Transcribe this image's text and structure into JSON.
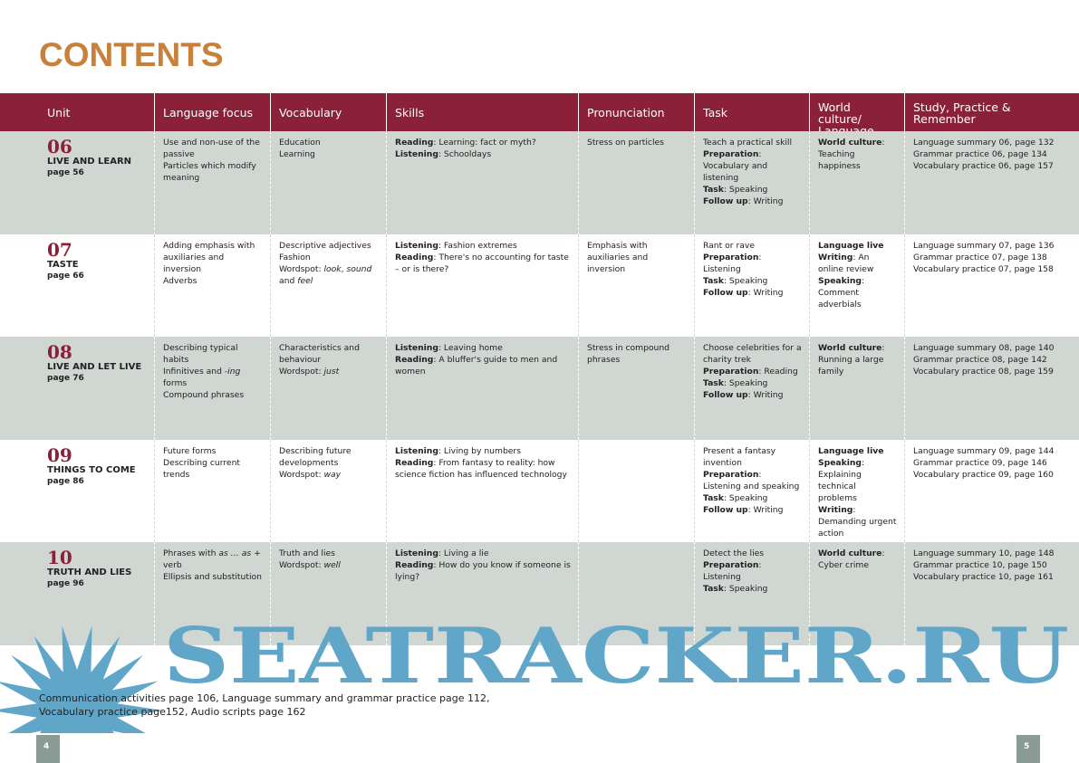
{
  "title": "CONTENTS",
  "headers": [
    "Unit",
    "Language focus",
    "Vocabulary",
    "Skills",
    "Pronunciation",
    "Task",
    "World culture/ Language live",
    "Study, Practice & Remember"
  ],
  "rows": [
    {
      "num": "06",
      "name": "LIVE AND LEARN",
      "page": "page 56",
      "cols": [
        [
          [
            {
              "s": "Use and non-use of the passive"
            }
          ],
          [
            {
              "s": "Particles which modify meaning"
            }
          ]
        ],
        [
          [
            {
              "s": "Education"
            }
          ],
          [
            {
              "s": "Learning"
            }
          ]
        ],
        [
          [
            {
              "s": "Reading",
              "f": "b"
            },
            {
              "s": ": Learning: fact or myth?"
            }
          ],
          [
            {
              "s": "Listening",
              "f": "b"
            },
            {
              "s": ": Schooldays"
            }
          ]
        ],
        [
          [
            {
              "s": "Stress on particles"
            }
          ]
        ],
        [
          [
            {
              "s": "Teach a practical skill"
            }
          ],
          [
            {
              "s": "Preparation",
              "f": "b"
            },
            {
              "s": ": Vocabulary and listening"
            }
          ],
          [
            {
              "s": "Task",
              "f": "b"
            },
            {
              "s": ": Speaking"
            }
          ],
          [
            {
              "s": "Follow up",
              "f": "b"
            },
            {
              "s": ": Writing"
            }
          ]
        ],
        [
          [
            {
              "s": "World culture",
              "f": "b"
            },
            {
              "s": ": Teaching happiness"
            }
          ]
        ],
        [
          [
            {
              "s": "Language summary 06, page 132"
            }
          ],
          [
            {
              "s": "Grammar practice 06, page 134"
            }
          ],
          [
            {
              "s": "Vocabulary practice 06, page 157"
            }
          ]
        ]
      ]
    },
    {
      "num": "07",
      "name": "TASTE",
      "page": "page 66",
      "cols": [
        [
          [
            {
              "s": "Adding emphasis with auxiliaries and inversion"
            }
          ],
          [
            {
              "s": "Adverbs"
            }
          ]
        ],
        [
          [
            {
              "s": "Descriptive adjectives"
            }
          ],
          [
            {
              "s": "Fashion"
            }
          ],
          [
            {
              "s": "Wordspot: "
            },
            {
              "s": "look",
              "f": "i"
            },
            {
              "s": ", "
            },
            {
              "s": "sound",
              "f": "i"
            },
            {
              "s": " and "
            },
            {
              "s": "feel",
              "f": "i"
            }
          ]
        ],
        [
          [
            {
              "s": "Listening",
              "f": "b"
            },
            {
              "s": ": Fashion extremes"
            }
          ],
          [
            {
              "s": "Reading",
              "f": "b"
            },
            {
              "s": ": There's no accounting for taste – or is there?"
            }
          ]
        ],
        [
          [
            {
              "s": "Emphasis with auxiliaries and inversion"
            }
          ]
        ],
        [
          [
            {
              "s": "Rant or rave"
            }
          ],
          [
            {
              "s": "Preparation",
              "f": "b"
            },
            {
              "s": ": Listening"
            }
          ],
          [
            {
              "s": "Task",
              "f": "b"
            },
            {
              "s": ": Speaking"
            }
          ],
          [
            {
              "s": "Follow up",
              "f": "b"
            },
            {
              "s": ": Writing"
            }
          ]
        ],
        [
          [
            {
              "s": "Language live",
              "f": "b"
            }
          ],
          [
            {
              "s": "Writing",
              "f": "b"
            },
            {
              "s": ": An online review"
            }
          ],
          [
            {
              "s": "Speaking",
              "f": "b"
            },
            {
              "s": ": Comment adverbials"
            }
          ]
        ],
        [
          [
            {
              "s": "Language summary 07, page 136"
            }
          ],
          [
            {
              "s": "Grammar practice 07, page 138"
            }
          ],
          [
            {
              "s": "Vocabulary practice 07, page 158"
            }
          ]
        ]
      ]
    },
    {
      "num": "08",
      "name": "LIVE AND LET LIVE",
      "page": "page 76",
      "cols": [
        [
          [
            {
              "s": "Describing typical habits"
            }
          ],
          [
            {
              "s": "Infinitives and "
            },
            {
              "s": "-ing",
              "f": "i"
            },
            {
              "s": " forms"
            }
          ],
          [
            {
              "s": "Compound phrases"
            }
          ]
        ],
        [
          [
            {
              "s": "Characteristics and behaviour"
            }
          ],
          [
            {
              "s": "Wordspot: "
            },
            {
              "s": "just",
              "f": "i"
            }
          ]
        ],
        [
          [
            {
              "s": "Listening",
              "f": "b"
            },
            {
              "s": ": Leaving home"
            }
          ],
          [
            {
              "s": "Reading",
              "f": "b"
            },
            {
              "s": ": A bluffer's guide to men and women"
            }
          ]
        ],
        [
          [
            {
              "s": "Stress in compound phrases"
            }
          ]
        ],
        [
          [
            {
              "s": "Choose celebrities for a charity trek"
            }
          ],
          [
            {
              "s": "Preparation",
              "f": "b"
            },
            {
              "s": ": Reading"
            }
          ],
          [
            {
              "s": "Task",
              "f": "b"
            },
            {
              "s": ": Speaking"
            }
          ],
          [
            {
              "s": "Follow up",
              "f": "b"
            },
            {
              "s": ": Writing"
            }
          ]
        ],
        [
          [
            {
              "s": "World culture",
              "f": "b"
            },
            {
              "s": ": Running a large family"
            }
          ]
        ],
        [
          [
            {
              "s": "Language summary 08, page 140"
            }
          ],
          [
            {
              "s": "Grammar practice 08, page 142"
            }
          ],
          [
            {
              "s": "Vocabulary practice 08, page 159"
            }
          ]
        ]
      ]
    },
    {
      "num": "09",
      "name": "THINGS TO COME",
      "page": "page 86",
      "cols": [
        [
          [
            {
              "s": "Future forms"
            }
          ],
          [
            {
              "s": "Describing current trends"
            }
          ]
        ],
        [
          [
            {
              "s": "Describing future developments"
            }
          ],
          [
            {
              "s": "Wordspot: "
            },
            {
              "s": "way",
              "f": "i"
            }
          ]
        ],
        [
          [
            {
              "s": "Listening",
              "f": "b"
            },
            {
              "s": ": Living by numbers"
            }
          ],
          [
            {
              "s": "Reading",
              "f": "b"
            },
            {
              "s": ": From fantasy to reality: how science fiction has influenced technology"
            }
          ]
        ],
        [],
        [
          [
            {
              "s": "Present a fantasy invention"
            }
          ],
          [
            {
              "s": "Preparation",
              "f": "b"
            },
            {
              "s": ": Listening and speaking"
            }
          ],
          [
            {
              "s": "Task",
              "f": "b"
            },
            {
              "s": ": Speaking"
            }
          ],
          [
            {
              "s": "Follow up",
              "f": "b"
            },
            {
              "s": ": Writing"
            }
          ]
        ],
        [
          [
            {
              "s": "Language live",
              "f": "b"
            }
          ],
          [
            {
              "s": "Speaking",
              "f": "b"
            },
            {
              "s": ": Explaining technical problems"
            }
          ],
          [
            {
              "s": "Writing",
              "f": "b"
            },
            {
              "s": ": Demanding urgent action"
            }
          ]
        ],
        [
          [
            {
              "s": "Language summary 09, page 144"
            }
          ],
          [
            {
              "s": "Grammar practice 09, page 146"
            }
          ],
          [
            {
              "s": "Vocabulary practice 09, page 160"
            }
          ]
        ]
      ]
    },
    {
      "num": "10",
      "name": "TRUTH AND LIES",
      "page": "page 96",
      "cols": [
        [
          [
            {
              "s": "Phrases with "
            },
            {
              "s": "as … as",
              "f": "i"
            },
            {
              "s": " + verb"
            }
          ],
          [
            {
              "s": "Ellipsis and substitution"
            }
          ]
        ],
        [
          [
            {
              "s": "Truth and lies"
            }
          ],
          [
            {
              "s": "Wordspot: "
            },
            {
              "s": "well",
              "f": "i"
            }
          ]
        ],
        [
          [
            {
              "s": "Listening",
              "f": "b"
            },
            {
              "s": ": Living a lie"
            }
          ],
          [
            {
              "s": "Reading",
              "f": "b"
            },
            {
              "s": ": How do you know if someone is lying?"
            }
          ]
        ],
        [],
        [
          [
            {
              "s": "Detect the lies"
            }
          ],
          [
            {
              "s": "Preparation",
              "f": "b"
            },
            {
              "s": ": Listening"
            }
          ],
          [
            {
              "s": "Task",
              "f": "b"
            },
            {
              "s": ": Speaking"
            }
          ]
        ],
        [
          [
            {
              "s": "World culture",
              "f": "b"
            },
            {
              "s": ": Cyber crime"
            }
          ]
        ],
        [
          [
            {
              "s": "Language summary 10, page 148"
            }
          ],
          [
            {
              "s": "Grammar practice 10, page 150"
            }
          ],
          [
            {
              "s": "Vocabulary practice 10, page 161"
            }
          ]
        ]
      ]
    }
  ],
  "footer": {
    "line1": "Communication activities page 106, Language summary and grammar practice page 112,",
    "line2": "Vocabulary practice page152, Audio scripts page 162"
  },
  "page_left": "4",
  "page_right": "5",
  "watermark": "SEATRACKER.RU",
  "colors": {
    "header": "#8b2139",
    "title": "#c8813d",
    "row_shade": "#d0d6d2",
    "watermark": "#5fa6c9"
  }
}
